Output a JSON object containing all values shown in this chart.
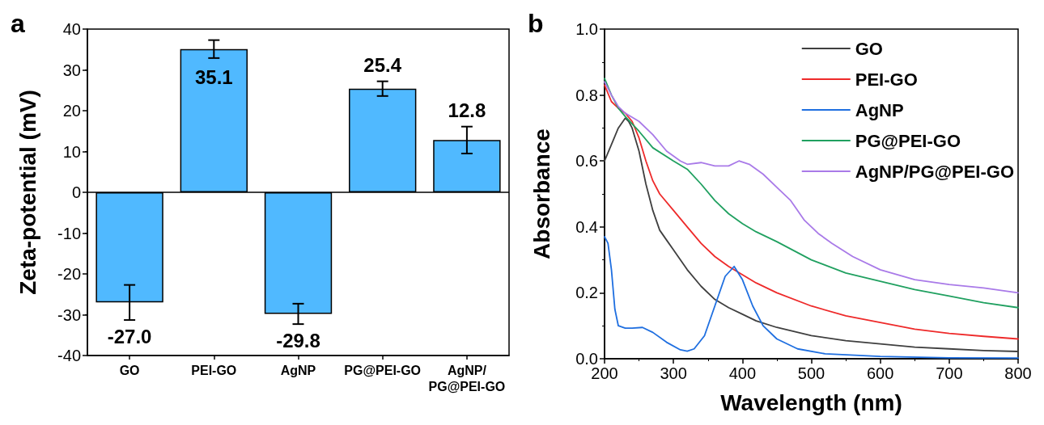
{
  "chart_data": [
    {
      "type": "bar",
      "title": "a",
      "ylabel": "Zeta-potential (mV)",
      "categories": [
        "GO",
        "PEI-GO",
        "AgNP",
        "PG@PEI-GO",
        "AgNP/\nPG@PEI-GO"
      ],
      "values": [
        -27.0,
        35.1,
        -29.8,
        25.4,
        12.8
      ],
      "errors": [
        4.3,
        2.2,
        2.5,
        1.8,
        3.3
      ],
      "color": "#50b9ff",
      "value_labels": [
        "-27.0",
        "35.1",
        "-29.8",
        "25.4",
        "12.8"
      ],
      "ylim": [
        -40,
        40
      ],
      "yticks": [
        -40,
        -30,
        -20,
        -10,
        0,
        10,
        20,
        30,
        40
      ],
      "ref_lines": [
        {
          "axis": "y",
          "value": 0,
          "color": "#000000"
        }
      ],
      "grid": false
    },
    {
      "type": "line",
      "title": "b",
      "xlabel": "Wavelength (nm)",
      "ylabel": "Absorbance",
      "xlim": [
        200,
        800
      ],
      "xticks": [
        200,
        300,
        400,
        500,
        600,
        700,
        800
      ],
      "ylim": [
        0,
        1.0
      ],
      "yticks": [
        {
          "value": 0,
          "label": "0.0"
        },
        {
          "value": 0.2,
          "label": "0.2"
        },
        {
          "value": 0.4,
          "label": "0.4"
        },
        {
          "value": 0.6,
          "label": "0.6"
        },
        {
          "value": 0.8,
          "label": "0.8"
        },
        {
          "value": 1.0,
          "label": "1.0"
        }
      ],
      "grid": false,
      "legend": "top right",
      "marker": "none",
      "line_style": "solid",
      "series": [
        {
          "name": "GO",
          "color": "#3f3f3f",
          "x": [
            200,
            210,
            220,
            230,
            235,
            240,
            250,
            260,
            270,
            280,
            290,
            300,
            320,
            340,
            360,
            380,
            400,
            420,
            450,
            500,
            550,
            600,
            650,
            700,
            750,
            800
          ],
          "values": [
            0.6,
            0.65,
            0.7,
            0.73,
            0.72,
            0.7,
            0.63,
            0.53,
            0.45,
            0.39,
            0.36,
            0.33,
            0.27,
            0.22,
            0.18,
            0.155,
            0.135,
            0.115,
            0.095,
            0.07,
            0.055,
            0.045,
            0.035,
            0.03,
            0.025,
            0.022
          ]
        },
        {
          "name": "PEI-GO",
          "color": "#ee2a2a",
          "x": [
            200,
            210,
            220,
            230,
            240,
            250,
            260,
            270,
            280,
            300,
            320,
            340,
            360,
            380,
            400,
            420,
            450,
            500,
            550,
            600,
            650,
            700,
            750,
            800
          ],
          "values": [
            0.83,
            0.78,
            0.76,
            0.745,
            0.72,
            0.67,
            0.6,
            0.54,
            0.5,
            0.45,
            0.4,
            0.35,
            0.31,
            0.28,
            0.255,
            0.23,
            0.2,
            0.16,
            0.13,
            0.11,
            0.09,
            0.077,
            0.068,
            0.06
          ]
        },
        {
          "name": "AgNP",
          "color": "#1f6fe0",
          "x": [
            200,
            205,
            210,
            215,
            220,
            230,
            240,
            255,
            270,
            290,
            310,
            320,
            330,
            345,
            360,
            375,
            388,
            400,
            415,
            430,
            450,
            480,
            520,
            600,
            700,
            800
          ],
          "values": [
            0.37,
            0.35,
            0.27,
            0.15,
            0.1,
            0.093,
            0.093,
            0.095,
            0.08,
            0.05,
            0.027,
            0.023,
            0.03,
            0.07,
            0.16,
            0.25,
            0.28,
            0.24,
            0.16,
            0.1,
            0.06,
            0.03,
            0.015,
            0.007,
            0.003,
            0.002
          ]
        },
        {
          "name": "PG@PEI-GO",
          "color": "#20a060",
          "x": [
            200,
            210,
            220,
            230,
            250,
            270,
            300,
            320,
            340,
            360,
            380,
            400,
            420,
            450,
            500,
            550,
            600,
            650,
            700,
            750,
            800
          ],
          "values": [
            0.85,
            0.8,
            0.76,
            0.735,
            0.69,
            0.64,
            0.6,
            0.575,
            0.53,
            0.48,
            0.44,
            0.41,
            0.385,
            0.355,
            0.3,
            0.26,
            0.235,
            0.21,
            0.19,
            0.17,
            0.155
          ]
        },
        {
          "name": "AgNP/PG@PEI-GO",
          "color": "#a97ae8",
          "x": [
            200,
            210,
            220,
            230,
            250,
            270,
            290,
            310,
            320,
            340,
            360,
            380,
            395,
            410,
            430,
            450,
            470,
            490,
            510,
            530,
            560,
            600,
            650,
            700,
            750,
            800
          ],
          "values": [
            0.84,
            0.8,
            0.765,
            0.745,
            0.72,
            0.68,
            0.63,
            0.6,
            0.59,
            0.595,
            0.585,
            0.585,
            0.6,
            0.59,
            0.56,
            0.52,
            0.48,
            0.42,
            0.38,
            0.35,
            0.31,
            0.27,
            0.24,
            0.225,
            0.215,
            0.2
          ]
        }
      ]
    }
  ]
}
